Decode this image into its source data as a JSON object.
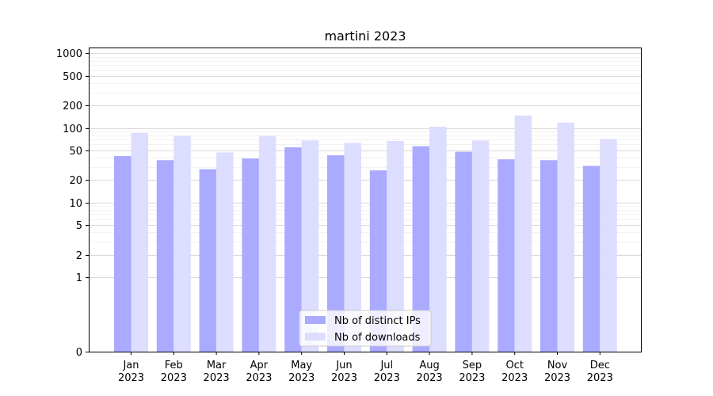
{
  "chart_data": {
    "type": "bar",
    "title": "martini 2023",
    "xlabel": "",
    "ylabel": "",
    "yscale": "symlog",
    "ylim": [
      0,
      1200
    ],
    "yticks": [
      0,
      1,
      2,
      5,
      10,
      20,
      50,
      100,
      200,
      500,
      1000
    ],
    "ytick_labels": [
      "0",
      "1",
      "2",
      "5",
      "10",
      "20",
      "50",
      "100",
      "200",
      "500",
      "1000"
    ],
    "categories": [
      [
        "Jan",
        "2023"
      ],
      [
        "Feb",
        "2023"
      ],
      [
        "Mar",
        "2023"
      ],
      [
        "Apr",
        "2023"
      ],
      [
        "May",
        "2023"
      ],
      [
        "Jun",
        "2023"
      ],
      [
        "Jul",
        "2023"
      ],
      [
        "Aug",
        "2023"
      ],
      [
        "Sep",
        "2023"
      ],
      [
        "Oct",
        "2023"
      ],
      [
        "Nov",
        "2023"
      ],
      [
        "Dec",
        "2023"
      ]
    ],
    "series": [
      {
        "name": "Nb of distinct IPs",
        "color": "#aaaaff",
        "values": [
          42,
          37,
          28,
          39,
          55,
          43,
          27,
          57,
          48,
          38,
          37,
          31
        ]
      },
      {
        "name": "Nb of downloads",
        "color": "#ddddff",
        "values": [
          86,
          78,
          47,
          78,
          68,
          63,
          67,
          104,
          68,
          147,
          118,
          71
        ]
      }
    ],
    "grid": true,
    "legend_position": "lower center"
  }
}
